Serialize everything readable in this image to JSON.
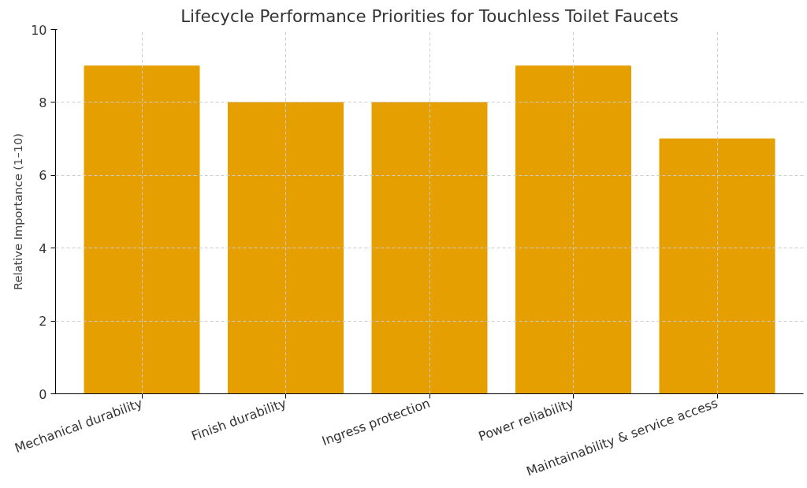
{
  "chart_data": {
    "type": "bar",
    "title": "Lifecycle Performance Priorities for Touchless Toilet Faucets",
    "ylabel": "Relative Importance (1–10)",
    "categories": [
      "Mechanical durability",
      "Finish durability",
      "Ingress protection",
      "Power reliability",
      "Maintainability & service access"
    ],
    "values": [
      9,
      8,
      8,
      9,
      7
    ],
    "color": "#e69f00",
    "ylim": [
      0,
      10
    ],
    "yticks": [
      0,
      2,
      4,
      6,
      8,
      10
    ],
    "grid": true
  }
}
